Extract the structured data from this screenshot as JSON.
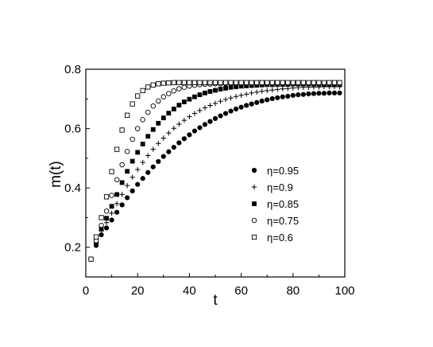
{
  "chart_data": {
    "type": "scatter",
    "xlabel": "t",
    "ylabel": "m(t)",
    "xlim": [
      0,
      100
    ],
    "ylim": [
      0.1,
      0.8
    ],
    "xticks": [
      0,
      20,
      40,
      60,
      80,
      100
    ],
    "yticks": [
      0.2,
      0.4,
      0.6,
      0.8
    ],
    "xtick_labels": [
      "0",
      "20",
      "40",
      "60",
      "80",
      "100"
    ],
    "ytick_labels": [
      "0.2",
      "0.4",
      "0.6",
      "0.8"
    ],
    "grid": false,
    "legend_position": "center-right",
    "x": [
      2,
      4,
      6,
      8,
      10,
      12,
      14,
      16,
      18,
      20,
      22,
      24,
      26,
      28,
      30,
      32,
      34,
      36,
      38,
      40,
      42,
      44,
      46,
      48,
      50,
      52,
      54,
      56,
      58,
      60,
      62,
      64,
      66,
      68,
      70,
      72,
      74,
      76,
      78,
      80,
      82,
      84,
      86,
      88,
      90,
      92,
      94,
      96,
      98
    ],
    "series": [
      {
        "name": "η=0.95",
        "marker": "filled-circle",
        "values": [
          0.16,
          0.206,
          0.242,
          0.265,
          0.292,
          0.318,
          0.343,
          0.367,
          0.39,
          0.412,
          0.432,
          0.452,
          0.471,
          0.489,
          0.506,
          0.522,
          0.537,
          0.552,
          0.566,
          0.579,
          0.592,
          0.603,
          0.614,
          0.624,
          0.634,
          0.643,
          0.651,
          0.659,
          0.666,
          0.672,
          0.678,
          0.683,
          0.688,
          0.693,
          0.697,
          0.701,
          0.704,
          0.707,
          0.709,
          0.712,
          0.714,
          0.715,
          0.717,
          0.718,
          0.719,
          0.719,
          0.72,
          0.72,
          0.72
        ]
      },
      {
        "name": "η=0.9",
        "marker": "plus",
        "values": [
          0.16,
          0.215,
          0.255,
          0.283,
          0.315,
          0.347,
          0.378,
          0.408,
          0.436,
          0.462,
          0.486,
          0.509,
          0.53,
          0.55,
          0.568,
          0.585,
          0.601,
          0.615,
          0.628,
          0.64,
          0.651,
          0.661,
          0.67,
          0.678,
          0.685,
          0.692,
          0.698,
          0.703,
          0.708,
          0.712,
          0.716,
          0.72,
          0.723,
          0.726,
          0.728,
          0.73,
          0.732,
          0.734,
          0.735,
          0.737,
          0.738,
          0.739,
          0.739,
          0.74,
          0.74,
          0.741,
          0.741,
          0.741,
          0.741
        ]
      },
      {
        "name": "η=0.85",
        "marker": "filled-square",
        "values": [
          0.16,
          0.218,
          0.263,
          0.298,
          0.338,
          0.378,
          0.418,
          0.456,
          0.49,
          0.52,
          0.548,
          0.574,
          0.597,
          0.618,
          0.636,
          0.652,
          0.666,
          0.679,
          0.69,
          0.699,
          0.707,
          0.714,
          0.72,
          0.725,
          0.729,
          0.733,
          0.736,
          0.739,
          0.741,
          0.743,
          0.744,
          0.745,
          0.746,
          0.747,
          0.748,
          0.748,
          0.749,
          0.749,
          0.749,
          0.75,
          0.75,
          0.75,
          0.75,
          0.75,
          0.75,
          0.75,
          0.75,
          0.75,
          0.75
        ]
      },
      {
        "name": "η=0.75",
        "marker": "open-circle",
        "values": [
          0.16,
          0.222,
          0.274,
          0.322,
          0.375,
          0.428,
          0.478,
          0.523,
          0.564,
          0.6,
          0.63,
          0.655,
          0.676,
          0.693,
          0.707,
          0.718,
          0.727,
          0.734,
          0.739,
          0.743,
          0.746,
          0.748,
          0.749,
          0.75,
          0.751,
          0.751,
          0.752,
          0.752,
          0.752,
          0.752,
          0.752,
          0.752,
          0.752,
          0.752,
          0.752,
          0.752,
          0.752,
          0.752,
          0.752,
          0.752,
          0.752,
          0.752,
          0.752,
          0.752,
          0.752,
          0.752,
          0.752,
          0.752,
          0.752
        ]
      },
      {
        "name": "η=0.6",
        "marker": "open-square",
        "values": [
          0.16,
          0.235,
          0.3,
          0.37,
          0.455,
          0.53,
          0.595,
          0.645,
          0.683,
          0.71,
          0.728,
          0.74,
          0.747,
          0.751,
          0.753,
          0.754,
          0.755,
          0.755,
          0.755,
          0.755,
          0.755,
          0.755,
          0.755,
          0.755,
          0.755,
          0.755,
          0.755,
          0.755,
          0.755,
          0.755,
          0.755,
          0.755,
          0.755,
          0.755,
          0.755,
          0.755,
          0.755,
          0.755,
          0.755,
          0.755,
          0.755,
          0.755,
          0.755,
          0.755,
          0.755,
          0.755,
          0.755,
          0.755,
          0.755
        ]
      }
    ]
  }
}
